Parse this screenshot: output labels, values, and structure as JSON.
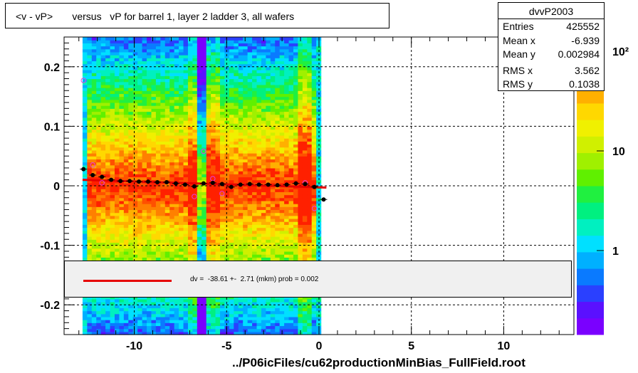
{
  "chart_data": {
    "type": "heatmap",
    "title": "<v - vP>       versus   vP for barrel 1, layer 2 ladder 3, all wafers",
    "xlabel": "",
    "ylabel": "",
    "xlim": [
      -13.8,
      13.8
    ],
    "ylim": [
      -0.25,
      0.25
    ],
    "x_ticks": [
      -10,
      -5,
      0,
      5,
      10
    ],
    "x_tick_labels": [
      "-10",
      "-5",
      "0",
      "5",
      "10"
    ],
    "y_ticks": [
      0.2,
      0.1,
      0,
      -0.1,
      -0.2
    ],
    "y_tick_labels": [
      "0.2",
      "0.1",
      "0",
      "-0.1",
      "-0.2"
    ],
    "grid": true,
    "z_scale": "log",
    "z_tick_labels": [
      "1",
      "10",
      "10²"
    ],
    "profile_points": {
      "x": [
        -12.75,
        -12.25,
        -11.75,
        -11.25,
        -10.75,
        -10.25,
        -9.75,
        -9.25,
        -8.75,
        -8.25,
        -7.75,
        -7.25,
        -6.75,
        -6.25,
        -5.75,
        -5.25,
        -4.75,
        -4.25,
        -3.75,
        -3.25,
        -2.75,
        -2.25,
        -1.75,
        -1.25,
        -0.75,
        -0.25,
        0.25
      ],
      "y": [
        0.028,
        0.018,
        0.015,
        0.01,
        0.008,
        0.008,
        0.007,
        0.007,
        0.006,
        0.006,
        0.004,
        0.002,
        -0.001,
        0.004,
        0.005,
        0.003,
        -0.002,
        0.002,
        0.003,
        0.002,
        0.002,
        0.001,
        0.002,
        0.004,
        0.003,
        -0.002,
        -0.023
      ]
    },
    "rms_points": {
      "x": [
        -12.75,
        -12.25,
        -11.75,
        -6.75,
        -6.25,
        -5.75,
        -5.25,
        -0.75,
        -0.25
      ],
      "y": [
        0.177,
        0.035,
        0.005,
        -0.018,
        0.058,
        0.012,
        -0.013,
        0.005,
        -0.038
      ]
    },
    "fit_line": {
      "x": [
        -12.8,
        0.4
      ],
      "y": [
        0.01,
        -0.003
      ]
    }
  },
  "stats": {
    "name": "dvvP2003",
    "rows": [
      {
        "key": "Entries",
        "value": "425552"
      },
      {
        "key": "Mean x",
        "value": "-6.939"
      },
      {
        "key": "Mean y",
        "value": "0.002984"
      },
      {
        "key": "RMS x",
        "value": "3.562"
      },
      {
        "key": "RMS y",
        "value": "0.1038"
      }
    ]
  },
  "fit": {
    "text": "dv =  -38.61 +-  2.71 (mkm) prob = 0.002"
  },
  "footer": "../P06icFiles/cu62productionMinBias_FullField.root",
  "colors": {
    "fit_line": "#e60000",
    "rms_marker": "#e040e0",
    "profile_marker": "#000000"
  }
}
